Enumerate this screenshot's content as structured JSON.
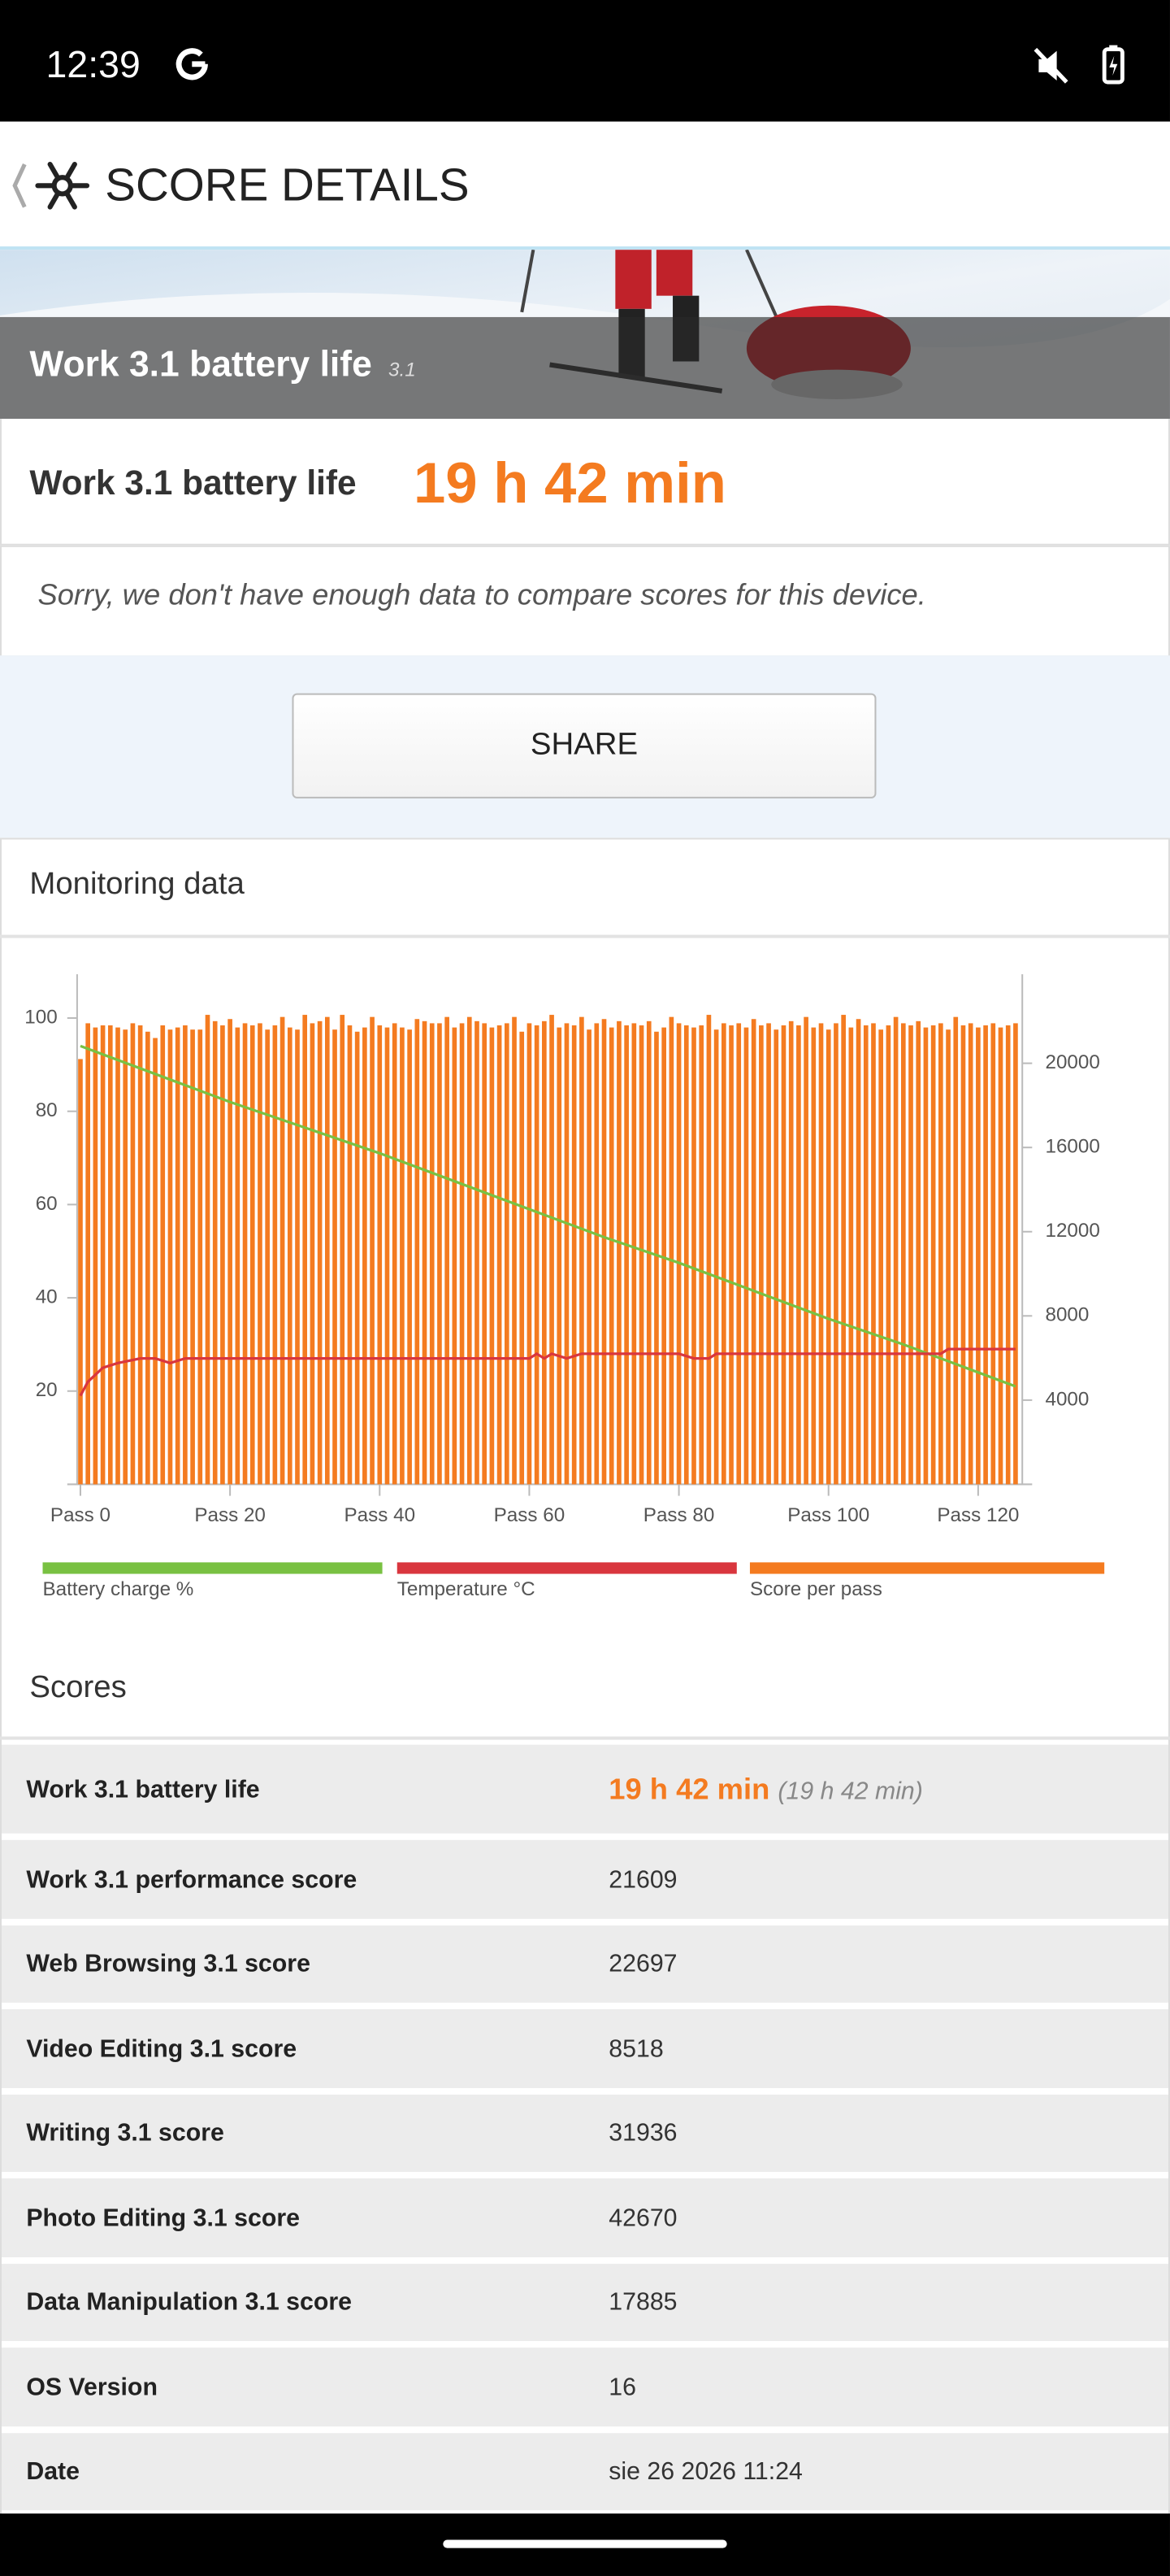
{
  "status_bar": {
    "time": "12:39"
  },
  "header": {
    "title": "SCORE DETAILS"
  },
  "banner": {
    "title": "Work 3.1 battery life",
    "version": "3.1"
  },
  "result": {
    "label": "Work 3.1 battery life",
    "value": "19 h 42 min"
  },
  "note": "Sorry, we don't have enough data to compare scores for this device.",
  "share_button": "SHARE",
  "chart_data": {
    "type": "combo",
    "title": "Monitoring data",
    "xlim": [
      -0.44,
      125.9
    ],
    "xticks": [
      {
        "value": 0,
        "label": "Pass 0"
      },
      {
        "value": 20,
        "label": "Pass 20"
      },
      {
        "value": 40,
        "label": "Pass 40"
      },
      {
        "value": 60,
        "label": "Pass 60"
      },
      {
        "value": 80,
        "label": "Pass 80"
      },
      {
        "value": 100,
        "label": "Pass 100"
      },
      {
        "value": 120,
        "label": "Pass 120"
      }
    ],
    "ylim": [
      0,
      109.4
    ],
    "yticks": [
      20,
      40,
      60,
      80,
      100
    ],
    "y2lim": [
      0,
      24230
    ],
    "y2ticks": [
      4000,
      8000,
      12000,
      16000,
      20000
    ],
    "series": [
      {
        "name": "Battery charge %",
        "type": "line",
        "color": "#79c142",
        "x": [
          0,
          10,
          20,
          30,
          40,
          50,
          60,
          70,
          80,
          90,
          100,
          110,
          120,
          125
        ],
        "values": [
          94,
          88,
          82,
          76.5,
          71,
          65,
          59,
          53,
          47.5,
          41.5,
          35.5,
          30,
          24,
          21
        ]
      },
      {
        "name": "Temperature °C",
        "type": "line",
        "color": "#d9363e",
        "x": [
          0,
          1,
          3,
          5,
          8,
          10,
          12,
          14,
          60,
          61,
          62,
          63,
          65,
          67,
          70,
          80,
          82,
          84,
          85,
          115,
          116,
          125
        ],
        "values": [
          19,
          22,
          25,
          26,
          27,
          27,
          26,
          27,
          27,
          28,
          27,
          28,
          27,
          28,
          28,
          28,
          27,
          27,
          28,
          28,
          29,
          29
        ]
      },
      {
        "name": "Score per pass",
        "type": "bar",
        "color": "#f47b20",
        "axis": "y2",
        "x": [
          0,
          1,
          2,
          3,
          4,
          5,
          6,
          7,
          8,
          9,
          10,
          11,
          12,
          13,
          14,
          15,
          16,
          17,
          18,
          19,
          20,
          21,
          22,
          23,
          24,
          25,
          26,
          27,
          28,
          29,
          30,
          31,
          32,
          33,
          34,
          35,
          36,
          37,
          38,
          39,
          40,
          41,
          42,
          43,
          44,
          45,
          46,
          47,
          48,
          49,
          50,
          51,
          52,
          53,
          54,
          55,
          56,
          57,
          58,
          59,
          60,
          61,
          62,
          63,
          64,
          65,
          66,
          67,
          68,
          69,
          70,
          71,
          72,
          73,
          74,
          75,
          76,
          77,
          78,
          79,
          80,
          81,
          82,
          83,
          84,
          85,
          86,
          87,
          88,
          89,
          90,
          91,
          92,
          93,
          94,
          95,
          96,
          97,
          98,
          99,
          100,
          101,
          102,
          103,
          104,
          105,
          106,
          107,
          108,
          109,
          110,
          111,
          112,
          113,
          114,
          115,
          116,
          117,
          118,
          119,
          120,
          121,
          122,
          123,
          124,
          125
        ],
        "values": [
          20200,
          21900,
          21700,
          21800,
          21800,
          21700,
          21600,
          21900,
          21800,
          21500,
          21200,
          21800,
          21600,
          21700,
          21800,
          21600,
          21600,
          22300,
          22000,
          21800,
          22100,
          21700,
          21900,
          21800,
          21900,
          21600,
          21800,
          22200,
          21700,
          21600,
          22300,
          21900,
          22000,
          22200,
          21600,
          22300,
          21800,
          21500,
          21700,
          22200,
          21800,
          21700,
          21900,
          21700,
          21600,
          22100,
          22000,
          21900,
          21900,
          22200,
          21700,
          21900,
          22200,
          22000,
          21900,
          21700,
          21800,
          21900,
          22200,
          21500,
          21900,
          21800,
          22000,
          22300,
          21700,
          21900,
          21800,
          22200,
          21600,
          21900,
          22100,
          21700,
          22000,
          21800,
          21900,
          21800,
          22000,
          21500,
          21700,
          22200,
          21900,
          21800,
          21700,
          21800,
          22300,
          21600,
          21900,
          21800,
          21900,
          21700,
          22100,
          21800,
          21900,
          21600,
          21800,
          22000,
          21800,
          22200,
          21700,
          21900,
          21600,
          21900,
          22300,
          21700,
          22100,
          21800,
          21900,
          21600,
          21800,
          22200,
          21900,
          21800,
          22000,
          21700,
          21800,
          21900,
          21600,
          22200,
          21800,
          21900,
          21700,
          21800,
          21900,
          21700,
          21800,
          21900
        ]
      }
    ]
  },
  "scores": {
    "title": "Scores",
    "rows": [
      {
        "label": "Work 3.1 battery life",
        "value": "19 h 42 min",
        "detail": "(19 h 42 min)"
      },
      {
        "label": "Work 3.1 performance score",
        "value": 21609
      },
      {
        "label": "Web Browsing 3.1 score",
        "value": 22697
      },
      {
        "label": "Video Editing 3.1 score",
        "value": 8518
      },
      {
        "label": "Writing 3.1 score",
        "value": 31936
      },
      {
        "label": "Photo Editing 3.1 score",
        "value": 42670
      },
      {
        "label": "Data Manipulation 3.1 score",
        "value": 17885
      },
      {
        "label": "OS Version",
        "value": 16
      },
      {
        "label": "Date",
        "value": "sie 26 2026 11:24"
      }
    ]
  }
}
